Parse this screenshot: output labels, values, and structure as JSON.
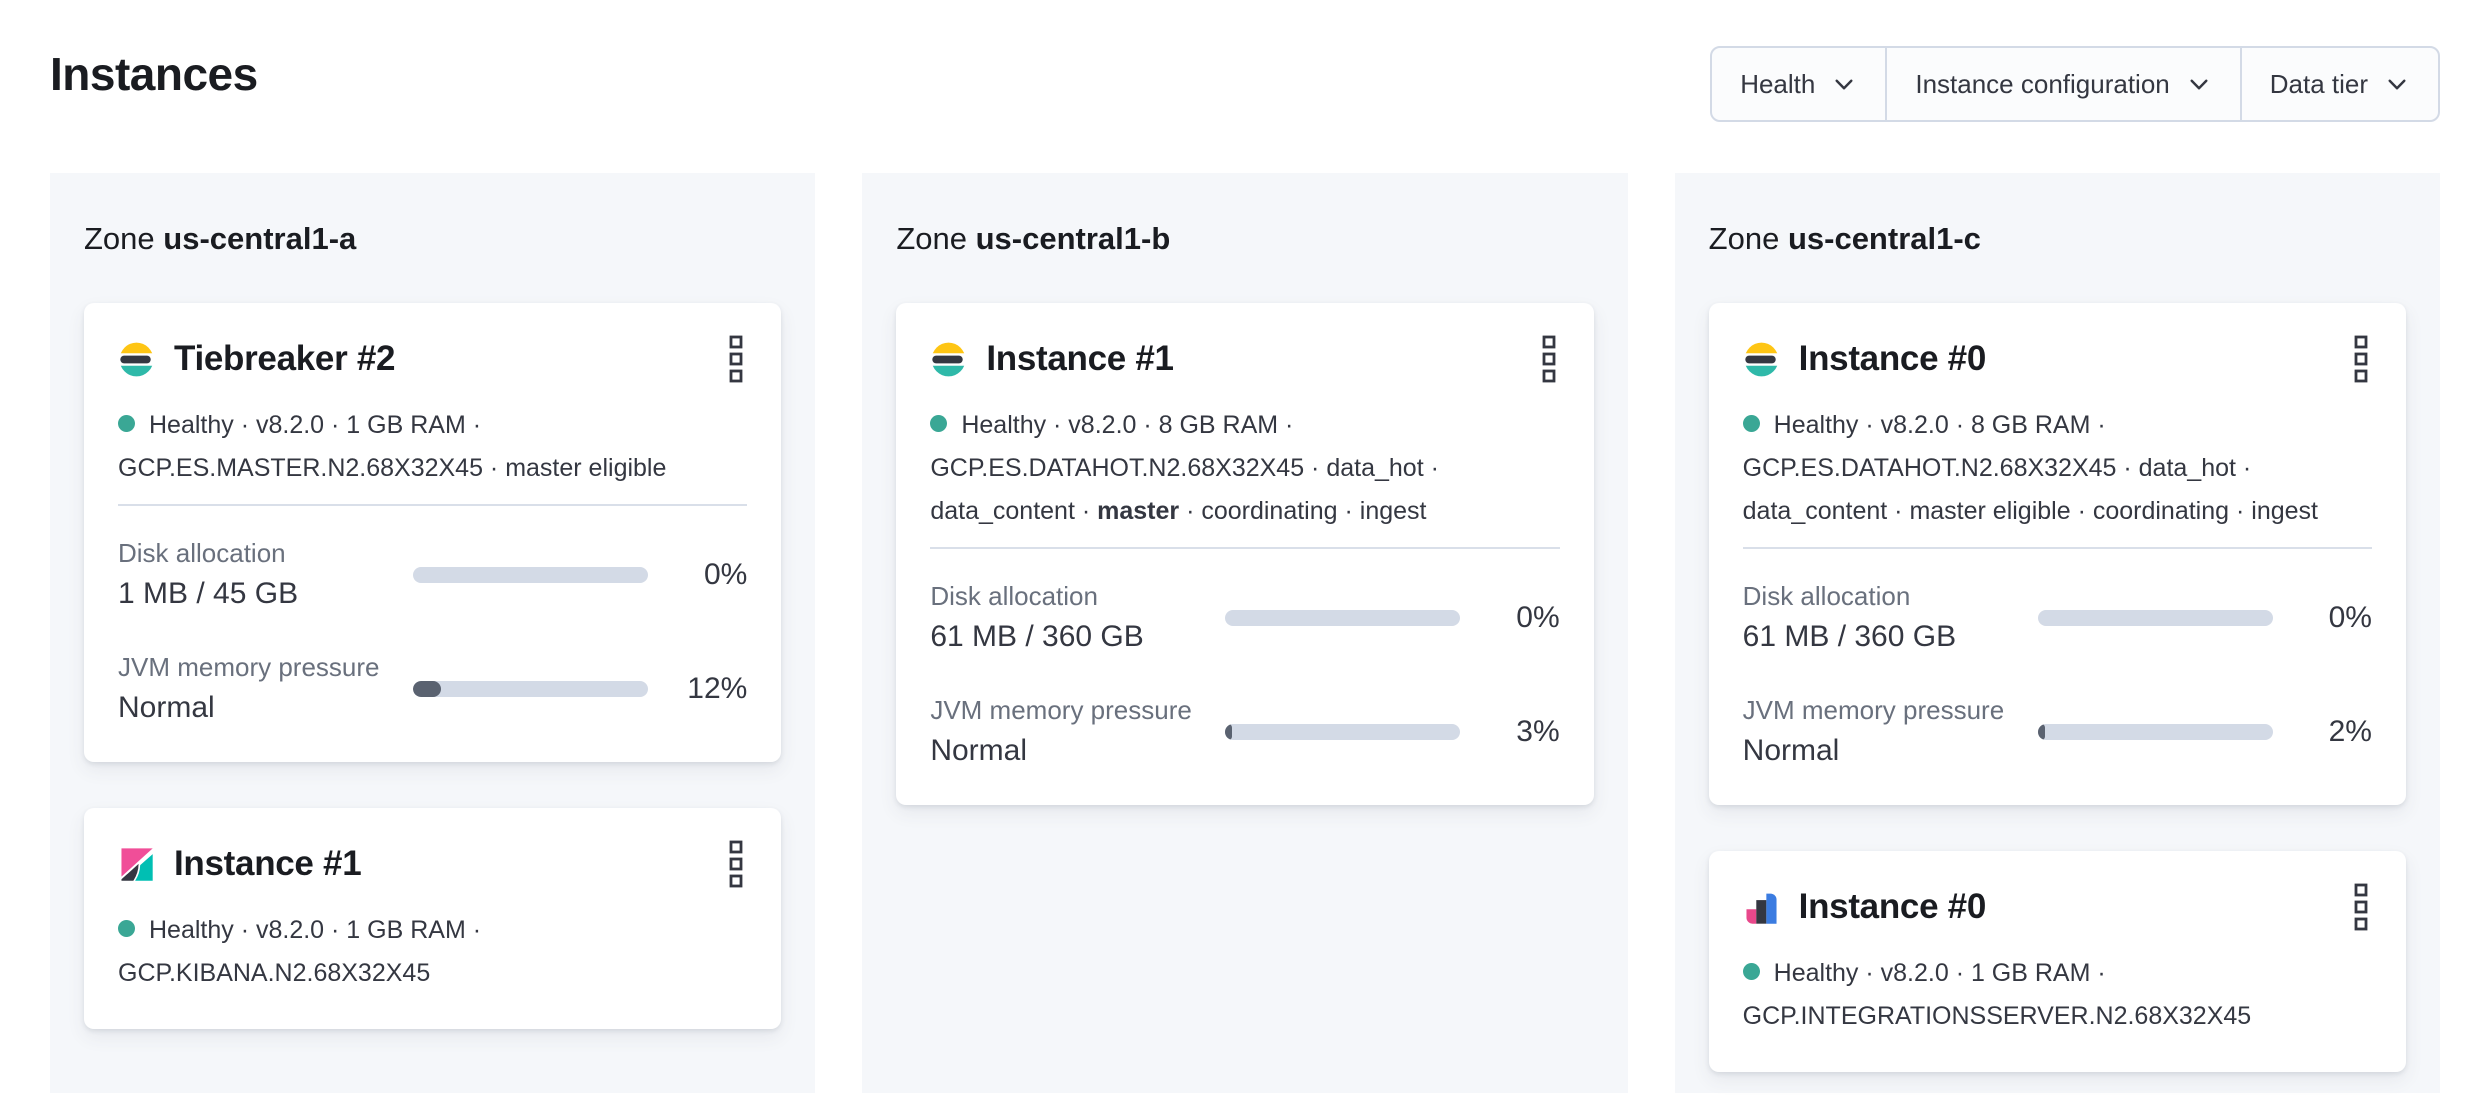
{
  "page": {
    "title": "Instances"
  },
  "filters": {
    "items": [
      {
        "label": "Health"
      },
      {
        "label": "Instance configuration"
      },
      {
        "label": "Data tier"
      }
    ]
  },
  "colors": {
    "healthy_dot": "#3AA795",
    "progress_track": "#D3DAE6",
    "progress_fill": "#5A6270",
    "panel_background": "#F5F7FA",
    "elasticsearch_logo": [
      "#FEC514",
      "#343741",
      "#2FB9A9"
    ],
    "kibana_logo": [
      "#F04E98",
      "#343741",
      "#00BFB3"
    ],
    "integrations_server_logo": [
      "#E8488B",
      "#343741",
      "#3B7CE1"
    ]
  },
  "zones": [
    {
      "prefix": "Zone",
      "name": "us-central1-a",
      "cards": [
        {
          "logo": "elasticsearch",
          "title": "Tiebreaker #2",
          "status": {
            "pre": "Healthy · v8.2.0 · 1 GB RAM · GCP.ES.MASTER.N2.68X32X45 · master eligible",
            "bold": "",
            "post": ""
          },
          "metrics": [
            {
              "label": "Disk allocation",
              "value": "1 MB / 45 GB",
              "percent": "0%",
              "fill_pct": 0
            },
            {
              "label": "JVM memory pressure",
              "value": "Normal",
              "percent": "12%",
              "fill_pct": 12
            }
          ]
        },
        {
          "logo": "kibana",
          "title": "Instance #1",
          "status": {
            "pre": "Healthy · v8.2.0 · 1 GB RAM · GCP.KIBANA.N2.68X32X45",
            "bold": "",
            "post": ""
          },
          "metrics": []
        }
      ]
    },
    {
      "prefix": "Zone",
      "name": "us-central1-b",
      "cards": [
        {
          "logo": "elasticsearch",
          "title": "Instance #1",
          "status": {
            "pre": "Healthy · v8.2.0 · 8 GB RAM · GCP.ES.DATAHOT.N2.68X32X45 · data_hot · data_content · ",
            "bold": "master",
            "post": " · coordinating · ingest"
          },
          "metrics": [
            {
              "label": "Disk allocation",
              "value": "61 MB / 360 GB",
              "percent": "0%",
              "fill_pct": 0
            },
            {
              "label": "JVM memory pressure",
              "value": "Normal",
              "percent": "3%",
              "fill_pct": 3
            }
          ]
        }
      ]
    },
    {
      "prefix": "Zone",
      "name": "us-central1-c",
      "cards": [
        {
          "logo": "elasticsearch",
          "title": "Instance #0",
          "status": {
            "pre": "Healthy · v8.2.0 · 8 GB RAM · GCP.ES.DATAHOT.N2.68X32X45 · data_hot · data_content · master eligible · coordinating · ingest",
            "bold": "",
            "post": ""
          },
          "metrics": [
            {
              "label": "Disk allocation",
              "value": "61 MB / 360 GB",
              "percent": "0%",
              "fill_pct": 0
            },
            {
              "label": "JVM memory pressure",
              "value": "Normal",
              "percent": "2%",
              "fill_pct": 2
            }
          ]
        },
        {
          "logo": "integrations-server",
          "title": "Instance #0",
          "status": {
            "pre": "Healthy · v8.2.0 · 1 GB RAM · GCP.INTEGRATIONSSERVER.N2.68X32X45",
            "bold": "",
            "post": ""
          },
          "metrics": []
        }
      ]
    }
  ]
}
